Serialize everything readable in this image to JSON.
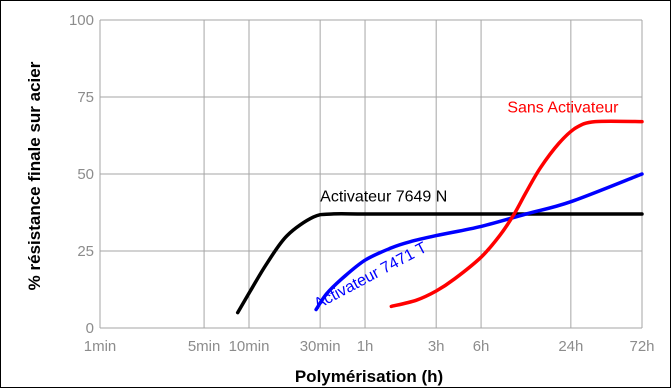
{
  "chart_data": {
    "type": "line",
    "xlabel": "Polymérisation (h)",
    "ylabel": "% résistance finale sur acier",
    "x_scale": "log",
    "x_range_hours": [
      0.0167,
      72
    ],
    "ylim": [
      0,
      100
    ],
    "grid": true,
    "x_ticks": [
      {
        "label": "1min",
        "hours": 0.0167
      },
      {
        "label": "5min",
        "hours": 0.0833
      },
      {
        "label": "10min",
        "hours": 0.1667
      },
      {
        "label": "30min",
        "hours": 0.5
      },
      {
        "label": "1h",
        "hours": 1
      },
      {
        "label": "3h",
        "hours": 3
      },
      {
        "label": "6h",
        "hours": 6
      },
      {
        "label": "24h",
        "hours": 24
      },
      {
        "label": "72h",
        "hours": 72
      }
    ],
    "y_ticks": [
      0,
      25,
      50,
      75,
      100
    ],
    "series": [
      {
        "name": "Activateur 7649 N",
        "color": "#000000",
        "points": [
          [
            0.14,
            5
          ],
          [
            0.17,
            12
          ],
          [
            0.22,
            21
          ],
          [
            0.3,
            30
          ],
          [
            0.45,
            36
          ],
          [
            0.6,
            37
          ],
          [
            1,
            37
          ],
          [
            3,
            37
          ],
          [
            6,
            37
          ],
          [
            12,
            37
          ],
          [
            24,
            37
          ],
          [
            72,
            37
          ]
        ]
      },
      {
        "name": "Activateur 7471 T",
        "color": "#0000ff",
        "points": [
          [
            0.47,
            6
          ],
          [
            0.55,
            11
          ],
          [
            0.7,
            16
          ],
          [
            1,
            22
          ],
          [
            1.5,
            26
          ],
          [
            2,
            28
          ],
          [
            3,
            30
          ],
          [
            6,
            33
          ],
          [
            12,
            37
          ],
          [
            24,
            41
          ],
          [
            72,
            50
          ]
        ]
      },
      {
        "name": "Sans Activateur",
        "color": "#ff0000",
        "points": [
          [
            1.5,
            7
          ],
          [
            2.2,
            9
          ],
          [
            3,
            12
          ],
          [
            4,
            16
          ],
          [
            6,
            23
          ],
          [
            8,
            30
          ],
          [
            10,
            37
          ],
          [
            12,
            44
          ],
          [
            15,
            52
          ],
          [
            20,
            60
          ],
          [
            26,
            65
          ],
          [
            35,
            67
          ],
          [
            72,
            67
          ]
        ]
      }
    ],
    "annotations": [
      {
        "text": "Activateur 7649 N",
        "color": "#000000",
        "at": {
          "hours": 0.5,
          "y": 41
        }
      },
      {
        "text": "Activateur 7471 T",
        "color": "#0000ff",
        "at": {
          "hours": 0.48,
          "y": 6
        },
        "rotate_deg": -28
      },
      {
        "text": "Sans Activateur",
        "color": "#ff0000",
        "at": {
          "hours": 9,
          "y": 70
        }
      }
    ]
  }
}
